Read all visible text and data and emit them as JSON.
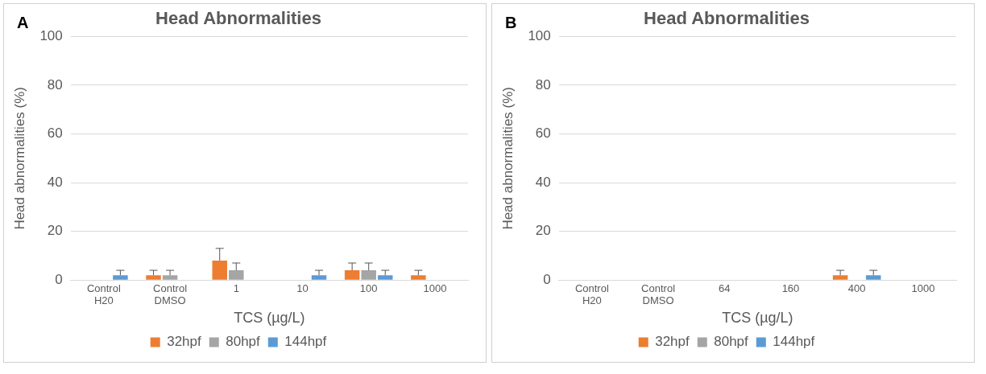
{
  "chart_data": [
    {
      "type": "bar",
      "title": "Head Abnormalities",
      "annotations": [
        "A"
      ],
      "xlabel": "TCS (µg/L)",
      "ylabel": "Head abnormalities (%)",
      "categories": [
        "Control H20",
        "Control DMSO",
        "1",
        "10",
        "100",
        "1000"
      ],
      "series": [
        {
          "name": "32hpf",
          "color": "#ed7d31",
          "values": [
            null,
            2,
            8,
            null,
            4,
            2
          ],
          "errors": [
            null,
            [
              2,
              4
            ],
            [
              8,
              13
            ],
            null,
            [
              4,
              7
            ],
            [
              2,
              4
            ]
          ]
        },
        {
          "name": "80hpf",
          "color": "#a5a5a5",
          "values": [
            null,
            2,
            4,
            null,
            4,
            null
          ],
          "errors": [
            null,
            [
              2,
              4
            ],
            [
              4,
              7
            ],
            null,
            [
              4,
              7
            ],
            null
          ]
        },
        {
          "name": "144hpf",
          "color": "#5b9bd5",
          "values": [
            2,
            null,
            null,
            2,
            2,
            null
          ],
          "errors": [
            [
              2,
              4
            ],
            null,
            null,
            [
              2,
              4
            ],
            [
              2,
              4
            ],
            null
          ]
        }
      ],
      "ylim": [
        0,
        100
      ],
      "yticks": [
        0,
        20,
        40,
        60,
        80,
        100
      ],
      "grid": "y",
      "legend": "bottom"
    },
    {
      "type": "bar",
      "title": "Head Abnormalities",
      "annotations": [
        "B"
      ],
      "xlabel": "TCS (µg/L)",
      "ylabel": "Head abnormalities (%)",
      "categories": [
        "Control H20",
        "Control DMSO",
        "64",
        "160",
        "400",
        "1000"
      ],
      "series": [
        {
          "name": "32hpf",
          "color": "#ed7d31",
          "values": [
            null,
            null,
            null,
            null,
            2,
            null
          ],
          "errors": [
            null,
            null,
            null,
            null,
            [
              2,
              4
            ],
            null
          ]
        },
        {
          "name": "80hpf",
          "color": "#a5a5a5",
          "values": [
            null,
            null,
            null,
            null,
            null,
            null
          ],
          "errors": [
            null,
            null,
            null,
            null,
            null,
            null
          ]
        },
        {
          "name": "144hpf",
          "color": "#5b9bd5",
          "values": [
            null,
            null,
            null,
            null,
            2,
            null
          ],
          "errors": [
            null,
            null,
            null,
            null,
            [
              2,
              4
            ],
            null
          ]
        }
      ],
      "ylim": [
        0,
        100
      ],
      "yticks": [
        0,
        20,
        40,
        60,
        80,
        100
      ],
      "grid": "y",
      "legend": "bottom"
    }
  ]
}
